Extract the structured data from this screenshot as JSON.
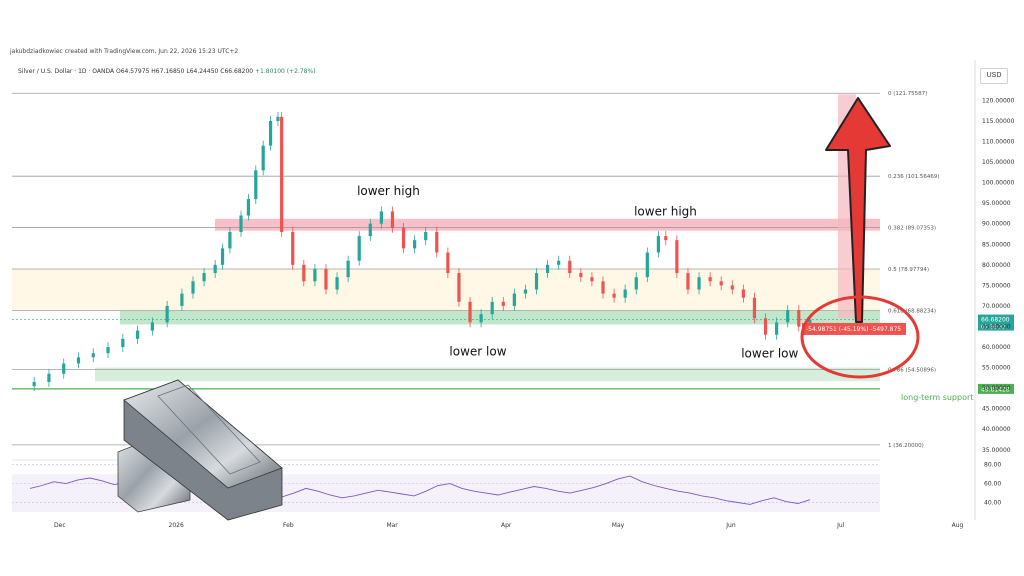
{
  "header": {
    "attribution": "jakubdziadkowiec created with TradingView.com, Jun 22, 2026 15:23 UTC+2",
    "symbol": "Silver / U.S. Dollar · 1D · OANDA",
    "open": "O64.57975",
    "high": "H67.16850",
    "low": "L64.24450",
    "close": "C66.68200",
    "change": "+1.80100 (+2.78%)",
    "currency": "USD"
  },
  "chart_data": {
    "type": "line",
    "xlabel": "",
    "ylabel": "",
    "x_tick_labels": [
      "Dec",
      "2026",
      "Feb",
      "Mar",
      "Apr",
      "May",
      "Jun",
      "Jul",
      "Aug"
    ],
    "y_tick_labels": [
      "120.00000",
      "115.00000",
      "110.00000",
      "105.00000",
      "100.00000",
      "95.00000",
      "90.00000",
      "85.00000",
      "80.00000",
      "75.00000",
      "70.00000",
      "65.00000",
      "60.00000",
      "55.00000",
      "50.00000",
      "45.00000",
      "40.00000",
      "35.00000"
    ],
    "ylim": [
      33,
      124
    ],
    "price_series": [
      {
        "x": "2025-11-20",
        "y": 50.5
      },
      {
        "x": "2025-11-24",
        "y": 51.5
      },
      {
        "x": "2025-11-28",
        "y": 53.5
      },
      {
        "x": "2025-12-02",
        "y": 56
      },
      {
        "x": "2025-12-06",
        "y": 57.5
      },
      {
        "x": "2025-12-10",
        "y": 58.5
      },
      {
        "x": "2025-12-14",
        "y": 60
      },
      {
        "x": "2025-12-18",
        "y": 62
      },
      {
        "x": "2025-12-22",
        "y": 64
      },
      {
        "x": "2025-12-26",
        "y": 66
      },
      {
        "x": "2025-12-30",
        "y": 70
      },
      {
        "x": "2026-01-03",
        "y": 73
      },
      {
        "x": "2026-01-06",
        "y": 76
      },
      {
        "x": "2026-01-09",
        "y": 78
      },
      {
        "x": "2026-01-12",
        "y": 80
      },
      {
        "x": "2026-01-14",
        "y": 84
      },
      {
        "x": "2026-01-16",
        "y": 88
      },
      {
        "x": "2026-01-19",
        "y": 92
      },
      {
        "x": "2026-01-21",
        "y": 96
      },
      {
        "x": "2026-01-23",
        "y": 103
      },
      {
        "x": "2026-01-25",
        "y": 109
      },
      {
        "x": "2026-01-27",
        "y": 115
      },
      {
        "x": "2026-01-29",
        "y": 116
      },
      {
        "x": "2026-01-30",
        "y": 88
      },
      {
        "x": "2026-02-02",
        "y": 80
      },
      {
        "x": "2026-02-05",
        "y": 76
      },
      {
        "x": "2026-02-08",
        "y": 79
      },
      {
        "x": "2026-02-11",
        "y": 74
      },
      {
        "x": "2026-02-14",
        "y": 77
      },
      {
        "x": "2026-02-17",
        "y": 81
      },
      {
        "x": "2026-02-20",
        "y": 87
      },
      {
        "x": "2026-02-23",
        "y": 90
      },
      {
        "x": "2026-02-26",
        "y": 93
      },
      {
        "x": "2026-03-01",
        "y": 89
      },
      {
        "x": "2026-03-04",
        "y": 84
      },
      {
        "x": "2026-03-07",
        "y": 86
      },
      {
        "x": "2026-03-10",
        "y": 88
      },
      {
        "x": "2026-03-13",
        "y": 83
      },
      {
        "x": "2026-03-16",
        "y": 78
      },
      {
        "x": "2026-03-19",
        "y": 71
      },
      {
        "x": "2026-03-22",
        "y": 66
      },
      {
        "x": "2026-03-25",
        "y": 68
      },
      {
        "x": "2026-03-28",
        "y": 71
      },
      {
        "x": "2026-03-31",
        "y": 70
      },
      {
        "x": "2026-04-03",
        "y": 73
      },
      {
        "x": "2026-04-06",
        "y": 74
      },
      {
        "x": "2026-04-09",
        "y": 78
      },
      {
        "x": "2026-04-12",
        "y": 80
      },
      {
        "x": "2026-04-15",
        "y": 81
      },
      {
        "x": "2026-04-18",
        "y": 78
      },
      {
        "x": "2026-04-21",
        "y": 77
      },
      {
        "x": "2026-04-24",
        "y": 76
      },
      {
        "x": "2026-04-27",
        "y": 73
      },
      {
        "x": "2026-04-30",
        "y": 72
      },
      {
        "x": "2026-05-03",
        "y": 74
      },
      {
        "x": "2026-05-06",
        "y": 77
      },
      {
        "x": "2026-05-09",
        "y": 83
      },
      {
        "x": "2026-05-12",
        "y": 87
      },
      {
        "x": "2026-05-14",
        "y": 86
      },
      {
        "x": "2026-05-17",
        "y": 78
      },
      {
        "x": "2026-05-20",
        "y": 74
      },
      {
        "x": "2026-05-23",
        "y": 77
      },
      {
        "x": "2026-05-26",
        "y": 76
      },
      {
        "x": "2026-05-29",
        "y": 75
      },
      {
        "x": "2026-06-01",
        "y": 74
      },
      {
        "x": "2026-06-04",
        "y": 72
      },
      {
        "x": "2026-06-07",
        "y": 67
      },
      {
        "x": "2026-06-10",
        "y": 63
      },
      {
        "x": "2026-06-13",
        "y": 66
      },
      {
        "x": "2026-06-16",
        "y": 69
      },
      {
        "x": "2026-06-19",
        "y": 65
      },
      {
        "x": "2026-06-22",
        "y": 66.68
      }
    ],
    "fib_levels": [
      {
        "label": "0 (121.75587)",
        "value": 121.75587
      },
      {
        "label": "0.236 (101.56469)",
        "value": 101.56469
      },
      {
        "label": "0.382 (89.07353)",
        "value": 89.07353
      },
      {
        "label": "0.5 (78.97794)",
        "value": 78.97794
      },
      {
        "label": "0.618 (68.88234)",
        "value": 68.88234
      },
      {
        "label": "0.786 (54.50896)",
        "value": 54.50896
      },
      {
        "label": "1 (36.20000)",
        "value": 36.2
      }
    ],
    "zones": [
      {
        "from": 88.3,
        "to": 91.2,
        "color": "#f28b9a"
      },
      {
        "from": 65.5,
        "to": 68.8,
        "color": "#8fd19e"
      },
      {
        "from": 51.7,
        "to": 55.0,
        "color": "#b5e0bd"
      }
    ],
    "support": {
      "value": 49.81428,
      "label": "long-term support",
      "price_label": "49.81428",
      "color": "#4caf50"
    },
    "current_price": {
      "value": 66.682,
      "label": "66.68200",
      "countdown": "07:36:32",
      "color": "#26a69a"
    },
    "measure_label": "-54.98751 (-45.19%) -5497.875",
    "annotations": [
      {
        "text": "lower high",
        "x": "2026-02-27",
        "y": 97
      },
      {
        "text": "lower high",
        "x": "2026-05-13",
        "y": 92
      },
      {
        "text": "lower low",
        "x": "2026-03-24",
        "y": 58
      },
      {
        "text": "lower low",
        "x": "2026-06-11",
        "y": 57.5
      }
    ],
    "rsi": {
      "y_tick_labels": [
        "80.00",
        "60.00",
        "40.00"
      ],
      "ylim": [
        30,
        85
      ],
      "values": [
        55,
        58,
        62,
        60,
        64,
        66,
        63,
        59,
        61,
        65,
        68,
        70,
        66,
        62,
        58,
        55,
        54,
        56,
        52,
        50,
        48,
        46,
        50,
        55,
        52,
        48,
        45,
        47,
        50,
        53,
        51,
        49,
        47,
        52,
        58,
        60,
        55,
        52,
        50,
        48,
        51,
        54,
        57,
        55,
        52,
        50,
        53,
        56,
        60,
        65,
        68,
        62,
        58,
        55,
        52,
        50,
        47,
        45,
        42,
        40,
        38,
        42,
        45,
        41,
        39,
        43
      ]
    },
    "grid": true
  }
}
